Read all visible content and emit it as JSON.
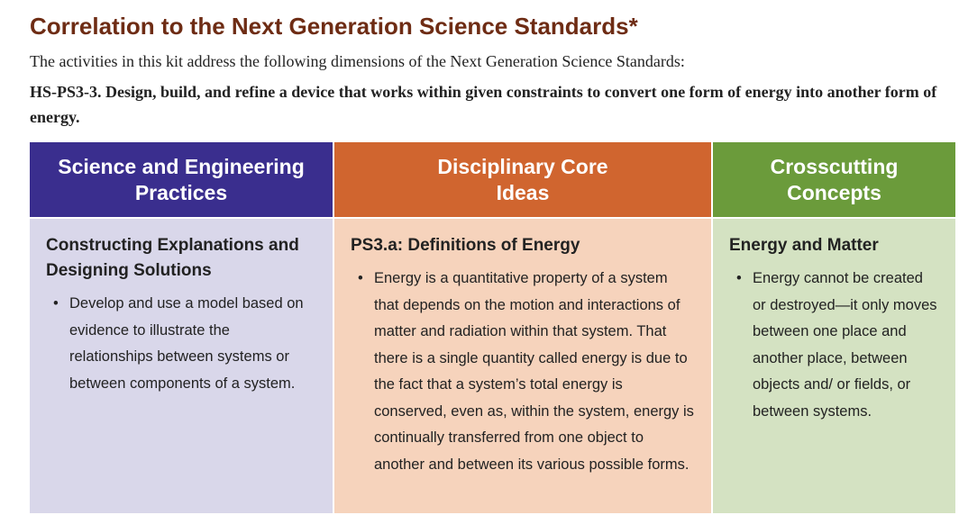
{
  "header": {
    "title": "Correlation to the Next Generation Science Standards*",
    "intro": "The activities in this kit address the following dimensions of the Next Generation Science Standards:",
    "standard": "HS-PS3-3. Design, build, and refine a device that works within given constraints to convert one form of energy into another form of energy."
  },
  "table": {
    "columns": [
      {
        "heading": "Science and Engineering Practices",
        "subtitle": "Constructing Explanations and Designing Solutions",
        "bullet": "Develop and use a model based on evidence to illustrate the relationships between systems or between components of a system."
      },
      {
        "heading": "Disciplinary Core Ideas",
        "subtitle": "PS3.a: Definitions of Energy",
        "bullet": "Energy is a quantitative property of a system that depends on the motion and interactions of matter and radiation within that system. That there is a single quantity called energy is due to the fact that a system’s total energy is conserved, even as, within the system, energy is continually transferred from one object to another and between its various possible forms."
      },
      {
        "heading": "Crosscutting Concepts",
        "subtitle": "Energy and Matter",
        "bullet": "Energy cannot be created or destroyed—it only moves between one place and another place, between objects and/ or fields, or between systems."
      }
    ]
  }
}
